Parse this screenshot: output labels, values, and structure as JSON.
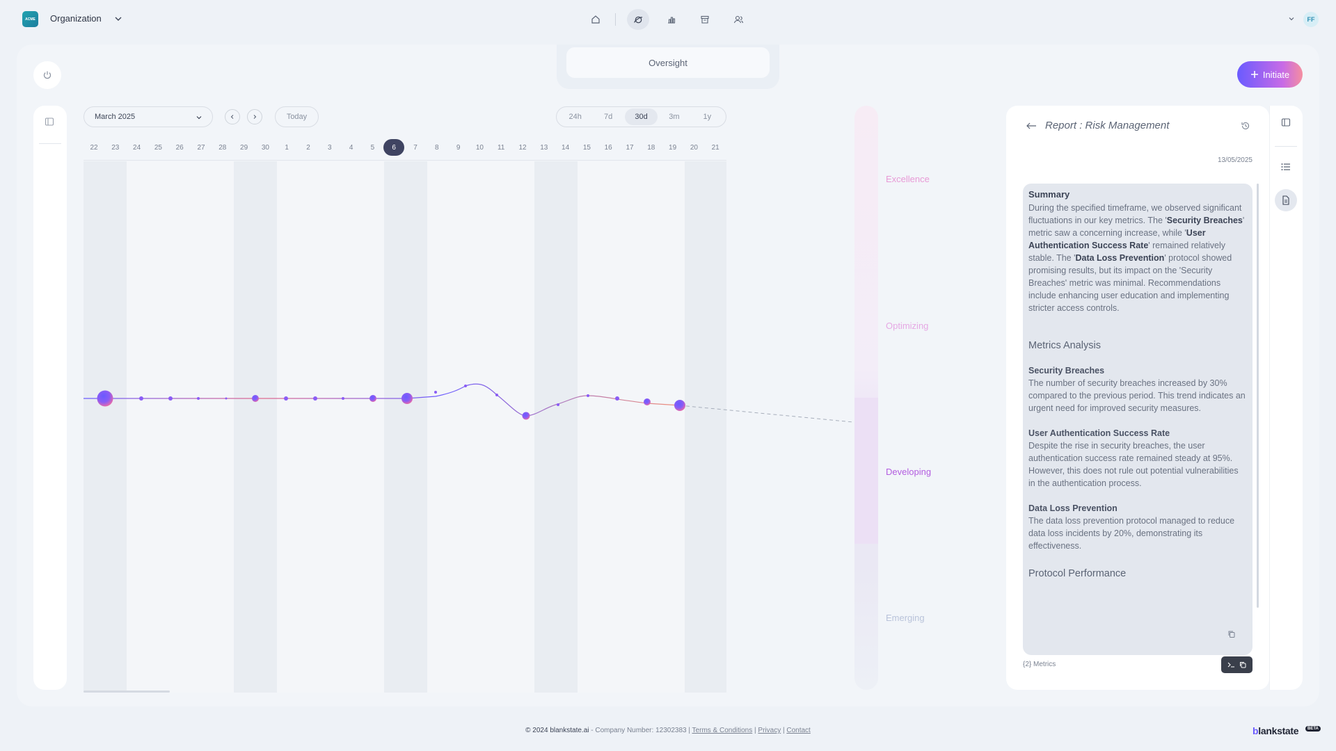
{
  "header": {
    "logo_text": "ACME",
    "org_name": "Organization",
    "avatar_initials": "FF",
    "nav_icons": [
      "home-icon",
      "planet-icon",
      "bar-chart-icon",
      "archive-icon",
      "users-icon"
    ],
    "active_nav": "planet-icon"
  },
  "toolbar": {
    "oversight_label": "Oversight",
    "initiate_label": "Initiate"
  },
  "calendar": {
    "month": "March 2025",
    "today_label": "Today",
    "ranges": [
      "24h",
      "7d",
      "30d",
      "3m",
      "1y"
    ],
    "active_range": "30d",
    "days": [
      "22",
      "23",
      "24",
      "25",
      "26",
      "27",
      "28",
      "29",
      "30",
      "1",
      "2",
      "3",
      "4",
      "5",
      "6",
      "7",
      "8",
      "9",
      "10",
      "11",
      "12",
      "13",
      "14",
      "15",
      "16",
      "17",
      "18",
      "19",
      "20",
      "21"
    ],
    "active_day": "6"
  },
  "levels": [
    "Excellence",
    "Optimizing",
    "Developing",
    "Emerging"
  ],
  "level_colors": {
    "Excellence": "#e89ad6",
    "Optimizing": "#e6a8e4",
    "Developing": "#b35de0",
    "Emerging": "#b9c3da"
  },
  "active_level": "Developing",
  "report": {
    "title": "Report : Risk Management",
    "date": "13/05/2025",
    "summary_heading": "Summary",
    "summary_p1": "During the specified timeframe, we observed significant fluctuations in our key metrics. The '",
    "summary_b1": "Security Breaches",
    "summary_p2": "' metric saw a concerning increase, while '",
    "summary_b2": "User Authentication Success Rate",
    "summary_p3": "' remained relatively stable. The '",
    "summary_b3": "Data Loss Prevention",
    "summary_p4": "' protocol showed promising results, but its impact on the 'Security Breaches' metric was minimal. Recommendations include enhancing user education and implementing stricter access controls.",
    "metrics_heading": "Metrics Analysis",
    "m1_title": "Security Breaches",
    "m1_text": "The number of security breaches increased by 30% compared to the previous period. This trend indicates an urgent need for improved security measures.",
    "m2_title": "User Authentication Success Rate",
    "m2_text": "Despite the rise in security breaches, the user authentication success rate remained steady at 95%. However, this does not rule out potential vulnerabilities in the authentication process.",
    "m3_title": "Data Loss Prevention",
    "m3_text": "The data loss prevention protocol managed to reduce data loss incidents by 20%, demonstrating its effectiveness.",
    "protocol_heading": "Protocol Performance",
    "metrics_tag": "{2} Metrics"
  },
  "footer": {
    "copyright": "© 2024 blankstate.ai",
    "company": " - Company Number: 12302383 | ",
    "terms": "Terms & Conditions",
    "sep1": " | ",
    "privacy": "Privacy",
    "sep2": " | ",
    "contact": "Contact",
    "brand_first": "b",
    "brand_rest": "lankstate",
    "beta": "BETA"
  },
  "colors": {
    "accent_start": "#6a5bff",
    "accent_end": "#f58e9f",
    "dark": "#3f4462"
  }
}
